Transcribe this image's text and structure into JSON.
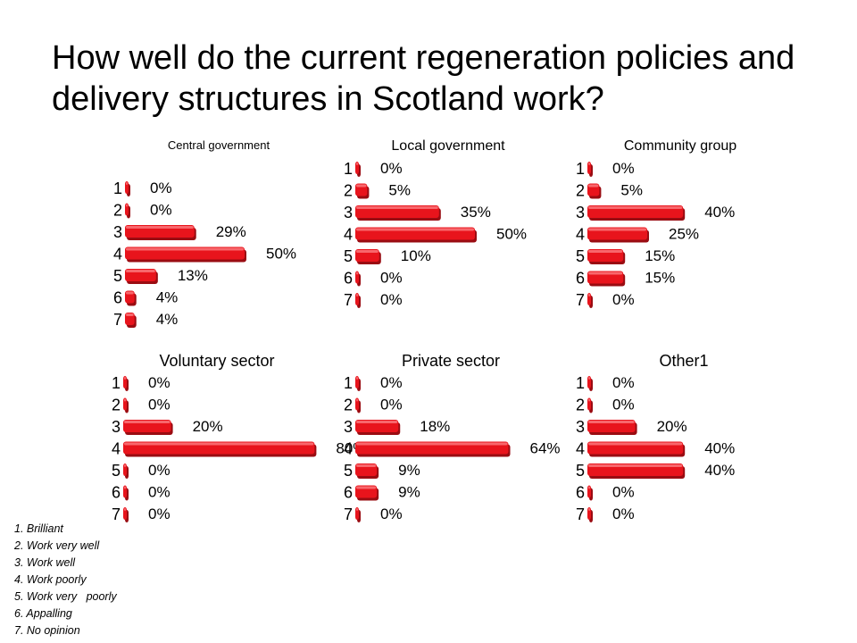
{
  "title": "How well do the current regeneration policies and delivery structures in Scotland work?",
  "colors": {
    "bar": "#e8141c",
    "bar_dark": "#9a0c12",
    "bar_light": "#ff8a8e",
    "text": "#000000"
  },
  "chart_data": [
    {
      "type": "bar",
      "orientation": "horizontal",
      "title": "Central government",
      "categories": [
        "1",
        "2",
        "3",
        "4",
        "5",
        "6",
        "7"
      ],
      "values": [
        0,
        0,
        29,
        50,
        13,
        4,
        4
      ],
      "labels": [
        "0%",
        "0%",
        "29%",
        "50%",
        "13%",
        "4%",
        "4%"
      ]
    },
    {
      "type": "bar",
      "orientation": "horizontal",
      "title": "Local government",
      "categories": [
        "1",
        "2",
        "3",
        "4",
        "5",
        "6",
        "7"
      ],
      "values": [
        0,
        5,
        35,
        50,
        10,
        0,
        0
      ],
      "labels": [
        "0%",
        "5%",
        "35%",
        "50%",
        "10%",
        "0%",
        "0%"
      ]
    },
    {
      "type": "bar",
      "orientation": "horizontal",
      "title": "Community group",
      "categories": [
        "1",
        "2",
        "3",
        "4",
        "5",
        "6",
        "7"
      ],
      "values": [
        0,
        5,
        40,
        25,
        15,
        15,
        0
      ],
      "labels": [
        "0%",
        "5%",
        "40%",
        "25%",
        "15%",
        "15%",
        "0%"
      ]
    },
    {
      "type": "bar",
      "orientation": "horizontal",
      "title": "Voluntary sector",
      "categories": [
        "1",
        "2",
        "3",
        "4",
        "5",
        "6",
        "7"
      ],
      "values": [
        0,
        0,
        20,
        80,
        0,
        0,
        0
      ],
      "labels": [
        "0%",
        "0%",
        "20%",
        "80%",
        "0%",
        "0%",
        "0%"
      ]
    },
    {
      "type": "bar",
      "orientation": "horizontal",
      "title": "Private sector",
      "categories": [
        "1",
        "2",
        "3",
        "4",
        "5",
        "6",
        "7"
      ],
      "values": [
        0,
        0,
        18,
        64,
        9,
        9,
        0
      ],
      "labels": [
        "0%",
        "0%",
        "18%",
        "64%",
        "9%",
        "9%",
        "0%"
      ]
    },
    {
      "type": "bar",
      "orientation": "horizontal",
      "title": "Other1",
      "categories": [
        "1",
        "2",
        "3",
        "4",
        "5",
        "6",
        "7"
      ],
      "values": [
        0,
        0,
        20,
        40,
        40,
        0,
        0
      ],
      "labels": [
        "0%",
        "0%",
        "20%",
        "40%",
        "40%",
        "0%",
        "0%"
      ]
    }
  ],
  "legend": [
    "1. Brilliant",
    "2. Work very well",
    "3. Work well",
    "4. Work poorly",
    "5. Work very   poorly",
    "6. Appalling",
    "7. No opinion"
  ]
}
